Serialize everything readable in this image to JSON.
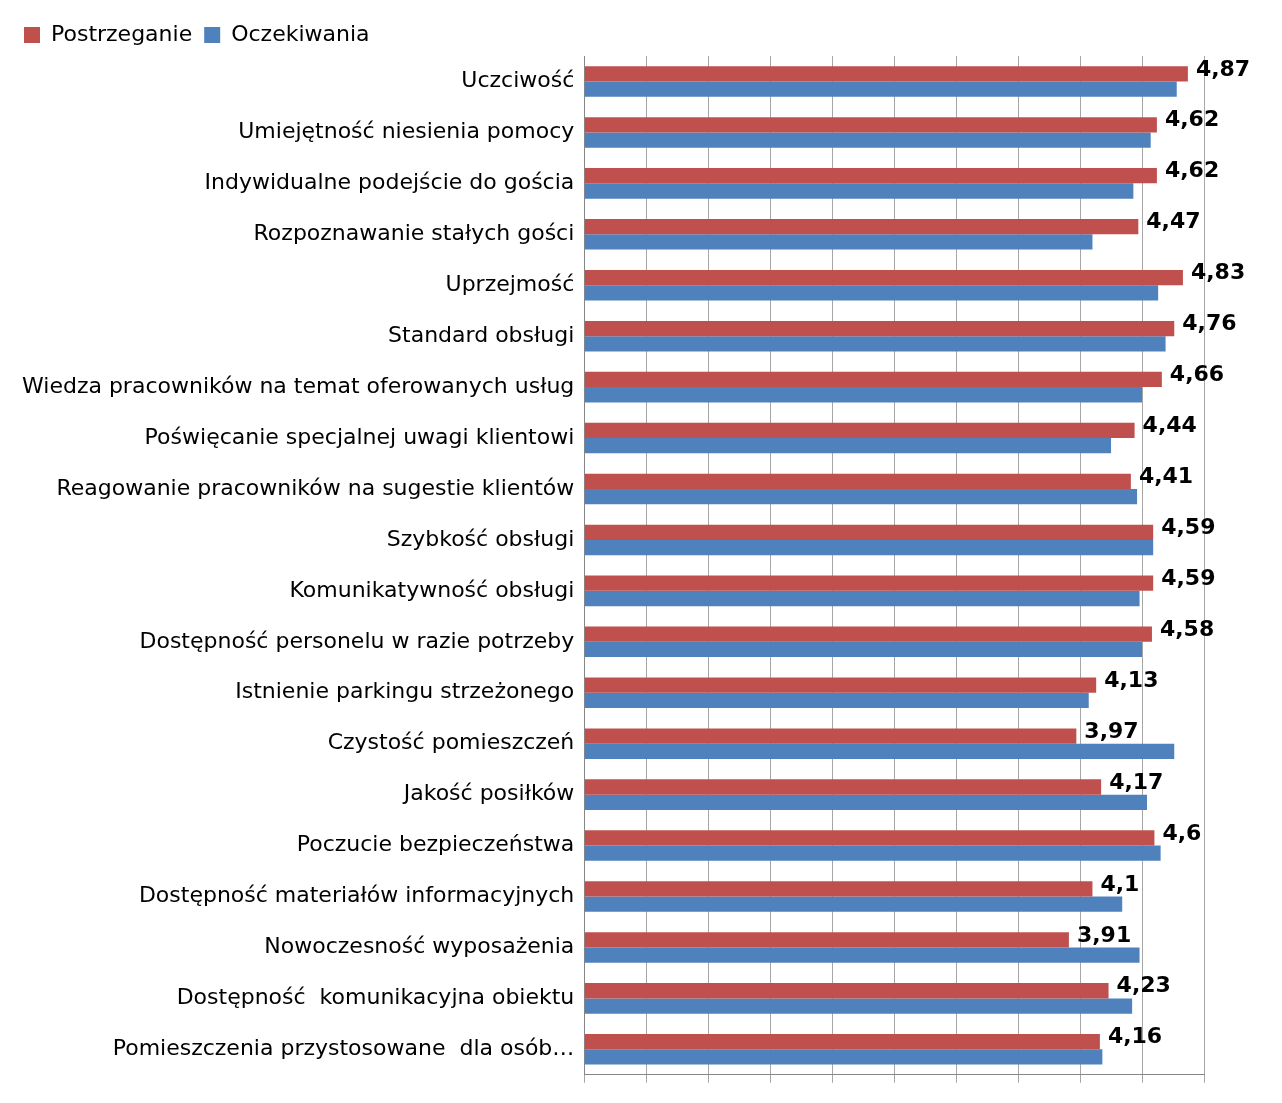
{
  "chart_data": {
    "type": "bar",
    "orientation": "horizontal",
    "categories": [
      "Uczciwość",
      "Umiejętność niesienia pomocy",
      "Indywidualne podejście do gościa",
      "Rozpoznawanie stałych gości",
      "Uprzejmość",
      "Standard obsługi",
      "Wiedza pracowników na temat oferowanych usług",
      "Poświęcanie specjalnej uwagi klientowi",
      "Reagowanie pracowników na sugestie klientów",
      "Szybkość obsługi",
      "Komunikatywność obsługi",
      "Dostępność personelu w razie potrzeby",
      "Istnienie parkingu strzeżonego",
      "Czystość pomieszczeń",
      "Jakość posiłków",
      "Poczucie bezpieczeństwa",
      "Dostępność materiałów informacyjnych",
      "Nowoczesność wyposażenia",
      "Dostępność  komunikacyjna obiektu",
      "Pomieszczenia przystosowane  dla osób…"
    ],
    "series": [
      {
        "name": "Postrzeganie",
        "color": "#c0504d",
        "values": [
          4.87,
          4.62,
          4.62,
          4.47,
          4.83,
          4.76,
          4.66,
          4.44,
          4.41,
          4.59,
          4.59,
          4.58,
          4.13,
          3.97,
          4.17,
          4.6,
          4.1,
          3.91,
          4.23,
          4.16
        ],
        "value_labels": [
          "4,87",
          "4,62",
          "4,62",
          "4,47",
          "4,83",
          "4,76",
          "4,66",
          "4,44",
          "4,41",
          "4,59",
          "4,59",
          "4,58",
          "4,13",
          "3,97",
          "4,17",
          "4,6",
          "4,1",
          "3,91",
          "4,23",
          "4,16"
        ]
      },
      {
        "name": "Oczekiwania",
        "color": "#4f81bd",
        "values": [
          4.78,
          4.57,
          4.43,
          4.1,
          4.63,
          4.69,
          4.5,
          4.25,
          4.46,
          4.59,
          4.48,
          4.5,
          4.07,
          4.76,
          4.54,
          4.65,
          4.34,
          4.48,
          4.42,
          4.18
        ]
      }
    ],
    "xlim": [
      0,
      5
    ],
    "xticks": [
      {
        "value": 0,
        "label": null
      },
      {
        "value": 0.5,
        "label": null
      },
      {
        "value": 1,
        "label": null
      },
      {
        "value": 1.5,
        "label": null
      },
      {
        "value": 2,
        "label": null
      },
      {
        "value": 2.5,
        "label": null
      },
      {
        "value": 3,
        "label": null
      },
      {
        "value": 3.5,
        "label": null
      },
      {
        "value": 4,
        "label": null
      },
      {
        "value": 4.5,
        "label": null
      },
      {
        "value": 5,
        "label": null
      }
    ],
    "grid": "x",
    "legend": "top left",
    "tick_labels": "y"
  }
}
